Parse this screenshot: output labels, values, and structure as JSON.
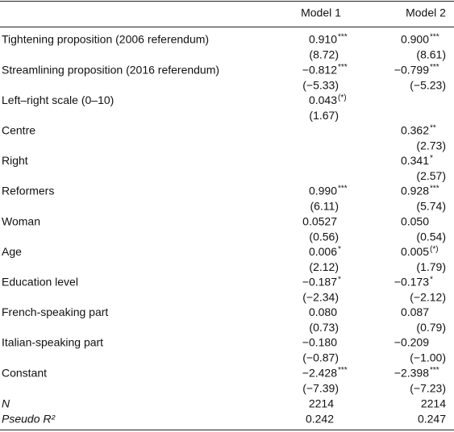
{
  "table": {
    "columns": [
      "Model 1",
      "Model 2"
    ],
    "rows": [
      {
        "label": "Tightening proposition (2006 referendum)",
        "m1": {
          "coef": "0.910",
          "stars": "***",
          "se": "(8.72)"
        },
        "m2": {
          "coef": "0.900",
          "stars": "***",
          "se": "(8.61)"
        }
      },
      {
        "label": "Streamlining proposition (2016 referendum)",
        "m1": {
          "coef": "−0.812",
          "stars": "***",
          "se": "(−5.33)"
        },
        "m2": {
          "coef": "−0.799",
          "stars": "***",
          "se": "(−5.23)"
        }
      },
      {
        "label": "Left–right scale (0–10)",
        "m1": {
          "coef": "0.043",
          "stars": "(*)",
          "se": "(1.67)"
        }
      },
      {
        "label": "Centre",
        "m2": {
          "coef": "0.362",
          "stars": "**",
          "se": "(2.73)"
        }
      },
      {
        "label": "Right",
        "m2": {
          "coef": "0.341",
          "stars": "*",
          "se": "(2.57)"
        }
      },
      {
        "label": "Reformers",
        "m1": {
          "coef": "0.990",
          "stars": "***",
          "se": "(6.11)"
        },
        "m2": {
          "coef": "0.928",
          "stars": "***",
          "se": "(5.74)"
        }
      },
      {
        "label": "Woman",
        "m1": {
          "coef": "0.0527",
          "se": "(0.56)"
        },
        "m2": {
          "coef": "0.050",
          "se": "(0.54)"
        }
      },
      {
        "label": "Age",
        "m1": {
          "coef": "0.006",
          "stars": "*",
          "se": "(2.12)"
        },
        "m2": {
          "coef": "0.005",
          "stars": "(*)",
          "se": "(1.79)"
        }
      },
      {
        "label": "Education level",
        "m1": {
          "coef": "−0.187",
          "stars": "*",
          "se": "(−2.34)"
        },
        "m2": {
          "coef": "−0.173",
          "stars": "*",
          "se": "(−2.12)"
        }
      },
      {
        "label": "French-speaking part",
        "m1": {
          "coef": "0.080",
          "se": "(0.73)"
        },
        "m2": {
          "coef": "0.087",
          "se": "(0.79)"
        }
      },
      {
        "label": "Italian-speaking part",
        "m1": {
          "coef": "−0.180",
          "se": "(−0.87)"
        },
        "m2": {
          "coef": "−0.209",
          "se": "(−1.00)"
        }
      },
      {
        "label": "Constant",
        "m1": {
          "coef": "−2.428",
          "stars": "***",
          "se": "(−7.39)"
        },
        "m2": {
          "coef": "−2.398",
          "stars": "***",
          "se": "(−7.23)"
        }
      }
    ],
    "stats": [
      {
        "label": "N",
        "m1": "2214",
        "m2": "2214"
      },
      {
        "label": "Pseudo R²",
        "m1": "0.242",
        "m2": "0.247"
      }
    ]
  }
}
